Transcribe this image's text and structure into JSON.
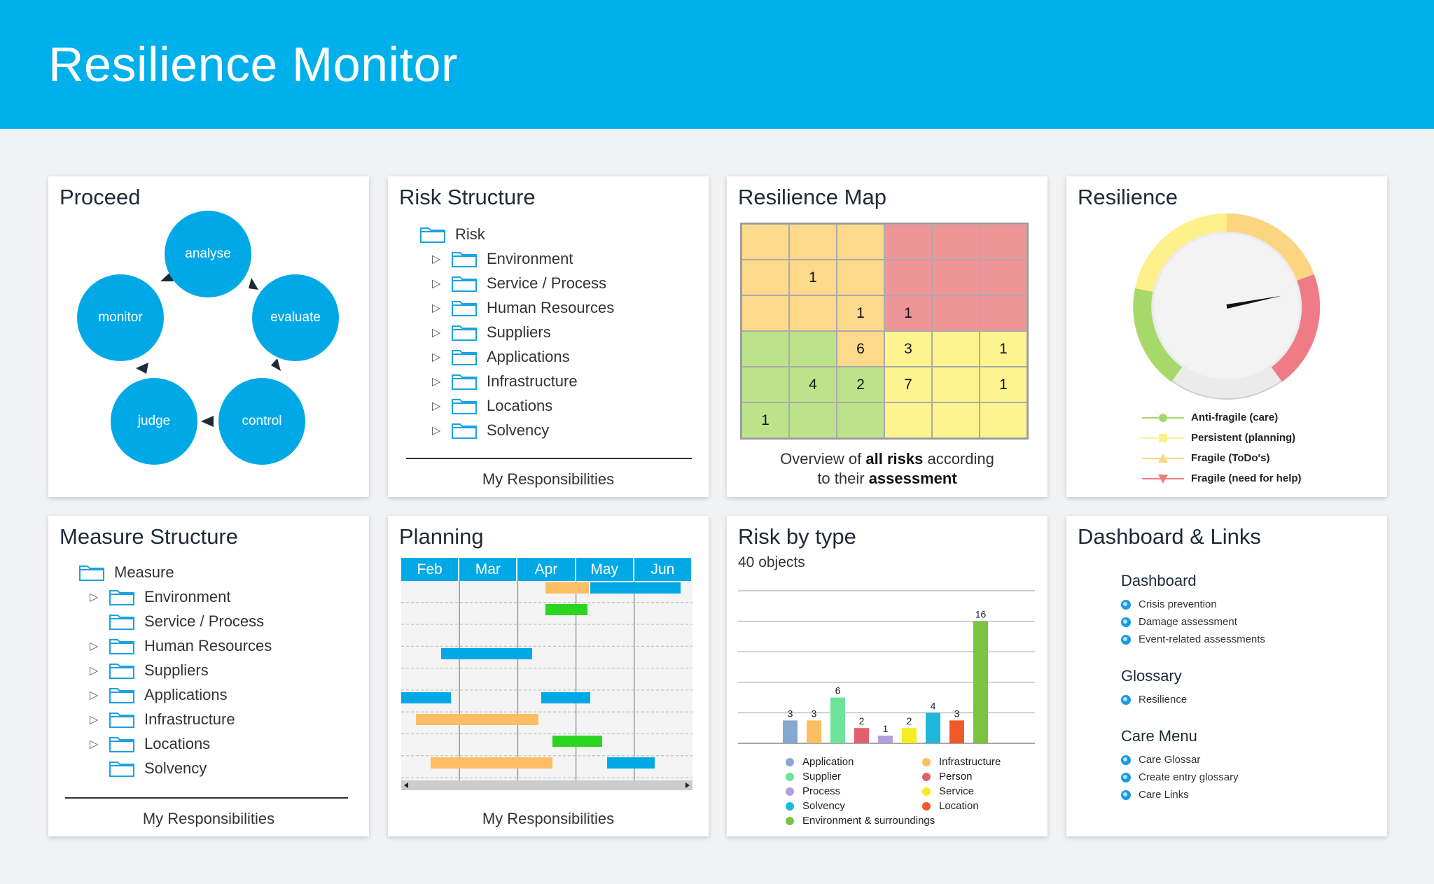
{
  "header": {
    "title": "Resilience Monitor"
  },
  "colors": {
    "brand": "#00b0ea",
    "circle": "#00a9e6"
  },
  "proceed": {
    "title": "Proceed",
    "steps": [
      "analyse",
      "evaluate",
      "control",
      "judge",
      "monitor"
    ]
  },
  "risk_structure": {
    "title": "Risk Structure",
    "root": "Risk",
    "items": [
      "Environment",
      "Service / Process",
      "Human Resources",
      "Suppliers",
      "Applications",
      "Infrastructure",
      "Locations",
      "Solvency"
    ],
    "footer": "My Responsibilities"
  },
  "resilience_map": {
    "title": "Resilience Map",
    "cells": [
      [
        "",
        "",
        "",
        "",
        "",
        ""
      ],
      [
        "",
        "1",
        "",
        "",
        "",
        ""
      ],
      [
        "",
        "",
        "1",
        "1",
        "",
        ""
      ],
      [
        "",
        "",
        "6",
        "3",
        "",
        "1"
      ],
      [
        "",
        "4",
        "2",
        "7",
        "",
        "1"
      ],
      [
        "1",
        "",
        "",
        "",
        "",
        ""
      ]
    ],
    "cell_colors": [
      [
        "#fdd98b",
        "#fdd98b",
        "#fdd98b",
        "#ee9598",
        "#ee9598",
        "#ee9598"
      ],
      [
        "#fdd98b",
        "#fdd98b",
        "#fdd98b",
        "#ee9598",
        "#ee9598",
        "#ee9598"
      ],
      [
        "#fdd98b",
        "#fdd98b",
        "#fdd98b",
        "#ee9598",
        "#ee9598",
        "#ee9598"
      ],
      [
        "#bde38a",
        "#bde38a",
        "#fdd98b",
        "#fdf38f",
        "#fdf38f",
        "#fdf38f"
      ],
      [
        "#bde38a",
        "#bde38a",
        "#bde38a",
        "#fdf38f",
        "#fdf38f",
        "#fdf38f"
      ],
      [
        "#bde38a",
        "#bde38a",
        "#bde38a",
        "#fdf38f",
        "#fdf38f",
        "#fdf38f"
      ]
    ],
    "caption_pre1": "Overview of ",
    "caption_bold1": "all risks",
    "caption_post1": " according",
    "caption_pre2": "to their ",
    "caption_bold2": "assessment"
  },
  "resilience": {
    "title": "Resilience",
    "needle_fraction": 0.72,
    "legend": [
      {
        "label": "Anti-fragile (care)",
        "color": "#a6d96a",
        "symbol": "circle"
      },
      {
        "label": "Persistent (planning)",
        "color": "#fef08a",
        "symbol": "square"
      },
      {
        "label": "Fragile (ToDo's)",
        "color": "#fcd581",
        "symbol": "triangle-up"
      },
      {
        "label": "Fragile (need for help)",
        "color": "#ef7b86",
        "symbol": "triangle-down"
      }
    ]
  },
  "measure_structure": {
    "title": "Measure Structure",
    "root": "Measure",
    "items": [
      {
        "label": "Environment",
        "expandable": true
      },
      {
        "label": "Service / Process",
        "expandable": false
      },
      {
        "label": "Human Resources",
        "expandable": true
      },
      {
        "label": "Suppliers",
        "expandable": true
      },
      {
        "label": "Applications",
        "expandable": true
      },
      {
        "label": "Infrastructure",
        "expandable": true
      },
      {
        "label": "Locations",
        "expandable": true
      },
      {
        "label": "Solvency",
        "expandable": false
      }
    ],
    "footer": "My Responsibilities"
  },
  "planning": {
    "title": "Planning",
    "months": [
      "Feb",
      "Mar",
      "Apr",
      "May",
      "Jun"
    ],
    "bars": [
      {
        "row": 0,
        "start": 2.47,
        "end": 3.22,
        "color": "#fdbd63"
      },
      {
        "row": 0,
        "start": 3.24,
        "end": 4.8,
        "color": "#00a9e6"
      },
      {
        "row": 1,
        "start": 2.47,
        "end": 3.2,
        "color": "#2bd420"
      },
      {
        "row": 3,
        "start": 0.68,
        "end": 2.25,
        "color": "#00a9e6"
      },
      {
        "row": 5,
        "start": 0.0,
        "end": 0.85,
        "color": "#00a9e6"
      },
      {
        "row": 5,
        "start": 2.4,
        "end": 3.25,
        "color": "#00a9e6"
      },
      {
        "row": 6,
        "start": 0.25,
        "end": 2.35,
        "color": "#fdbd63"
      },
      {
        "row": 7,
        "start": 2.6,
        "end": 3.45,
        "color": "#2bd420"
      },
      {
        "row": 8,
        "start": 0.5,
        "end": 2.6,
        "color": "#fdbd63"
      },
      {
        "row": 8,
        "start": 3.53,
        "end": 4.35,
        "color": "#00a9e6"
      }
    ],
    "footer": "My Responsibilities"
  },
  "risk_by_type": {
    "title": "Risk by type",
    "subtitle": "40 objects",
    "legend_left": [
      {
        "label": "Application",
        "color": "#86a8d0"
      },
      {
        "label": "Supplier",
        "color": "#6ee39a"
      },
      {
        "label": "Process",
        "color": "#b39ddb"
      },
      {
        "label": "Solvency",
        "color": "#1fb8da"
      },
      {
        "label": "Environment & surroundings",
        "color": "#7cc243"
      }
    ],
    "legend_right": [
      {
        "label": "Infrastructure",
        "color": "#fdbd63"
      },
      {
        "label": "Person",
        "color": "#e0616b"
      },
      {
        "label": "Service",
        "color": "#f6ec22"
      },
      {
        "label": "Location",
        "color": "#f05a28"
      }
    ]
  },
  "chart_data": {
    "type": "bar",
    "title": "Risk by type",
    "subtitle": "40 objects",
    "categories": [
      "Application",
      "Infrastructure",
      "Supplier",
      "Person",
      "Process",
      "Service",
      "Solvency",
      "Location",
      "Environment & surroundings"
    ],
    "values": [
      3,
      3,
      6,
      2,
      1,
      2,
      4,
      3,
      16
    ],
    "colors": [
      "#86a8d0",
      "#fdbd63",
      "#6ee39a",
      "#e0616b",
      "#b39ddb",
      "#f6ec22",
      "#1fb8da",
      "#f05a28",
      "#7cc243"
    ],
    "ylim": [
      0,
      20
    ],
    "grid": true,
    "legend": "bottom"
  },
  "dashboard_links": {
    "title": "Dashboard & Links",
    "sections": [
      {
        "heading": "Dashboard",
        "links": [
          "Crisis prevention",
          "Damage assessment",
          "Event-related assessments"
        ]
      },
      {
        "heading": "Glossary",
        "links": [
          "Resilience"
        ]
      },
      {
        "heading": "Care Menu",
        "links": [
          "Care Glossar",
          "Create entry glossary",
          "Care Links"
        ]
      }
    ]
  }
}
